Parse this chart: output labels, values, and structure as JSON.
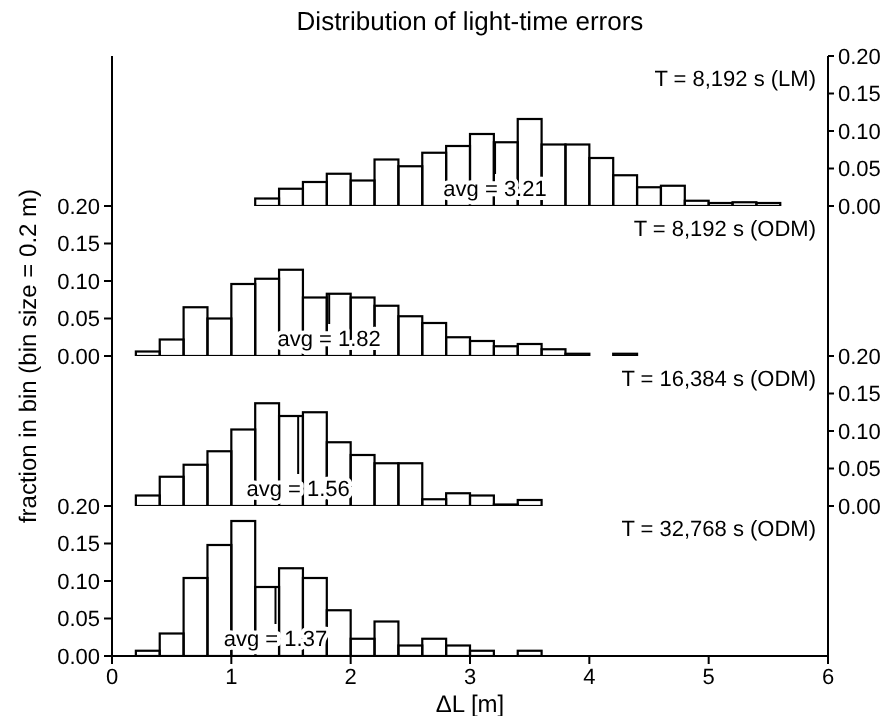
{
  "chart_data": [
    {
      "type": "histogram",
      "title": "Distribution of light-time errors",
      "annotations": [
        "T = 8,192 s (LM)",
        {
          "text": "avg = 3.21",
          "x": 3.21
        }
      ],
      "bins": [
        0,
        0.2,
        0.4,
        0.6,
        0.8,
        1,
        1.2,
        1.4,
        1.6,
        1.8,
        2,
        2.2,
        2.4,
        2.6,
        2.8,
        3,
        3.2,
        3.4,
        3.6,
        3.8,
        4,
        4.2,
        4.4,
        4.6,
        4.8,
        5,
        5.2,
        5.4,
        5.6,
        5.8,
        6
      ],
      "series": [
        {
          "color": "#000000",
          "axis": "y2",
          "values": [
            0,
            0,
            0,
            0,
            0,
            0,
            0.01,
            0.023,
            0.032,
            0.043,
            0.034,
            0.062,
            0.053,
            0.071,
            0.08,
            0.096,
            0.085,
            0.116,
            0.082,
            0.082,
            0.064,
            0.041,
            0.025,
            0.027,
            0.007,
            0.004,
            0.005,
            0.004,
            0,
            0
          ]
        }
      ],
      "xlim": [
        0,
        6
      ],
      "xticks": [
        0,
        1,
        2,
        3,
        4,
        5,
        6
      ],
      "y2lim": [
        0,
        0.2
      ],
      "y2ticks": [
        {
          "value": 0,
          "label": "0.00"
        },
        {
          "value": 0.05,
          "label": "0.05"
        },
        {
          "value": 0.1,
          "label": "0.10"
        },
        {
          "value": 0.15,
          "label": "0.15"
        },
        {
          "value": 0.2,
          "label": "0.20"
        }
      ],
      "tick_labels": "y"
    },
    {
      "type": "histogram",
      "ylabel": "fraction in bin (bin size = 0.2 m)",
      "annotations": [
        "T = 8,192 s (ODM)",
        {
          "text": "avg = 1.82",
          "x": 1.82
        }
      ],
      "bins": [
        0,
        0.2,
        0.4,
        0.6,
        0.8,
        1,
        1.2,
        1.4,
        1.6,
        1.8,
        2,
        2.2,
        2.4,
        2.6,
        2.8,
        3,
        3.2,
        3.4,
        3.6,
        3.8,
        4,
        4.2,
        4.4,
        4.6,
        4.8,
        5,
        5.2,
        5.4,
        5.6,
        5.8,
        6
      ],
      "series": [
        {
          "color": "#000000",
          "values": [
            0,
            0.006,
            0.022,
            0.065,
            0.05,
            0.096,
            0.103,
            0.115,
            0.078,
            0.083,
            0.078,
            0.067,
            0.053,
            0.044,
            0.025,
            0.02,
            0.013,
            0.016,
            0.009,
            0.003,
            0,
            0.003,
            0,
            0,
            0,
            0,
            0,
            0,
            0,
            0
          ]
        }
      ],
      "xlim": [
        0,
        6
      ],
      "xticks": [
        0,
        1,
        2,
        3,
        4,
        5,
        6
      ],
      "ylim": [
        0,
        0.2
      ],
      "yticks": [
        {
          "value": 0,
          "label": "0.00"
        },
        {
          "value": 0.05,
          "label": "0.05"
        },
        {
          "value": 0.1,
          "label": "0.10"
        },
        {
          "value": 0.15,
          "label": "0.15"
        },
        {
          "value": 0.2,
          "label": "0.20"
        }
      ],
      "tick_labels": "y"
    },
    {
      "type": "histogram",
      "annotations": [
        "T = 16,384 s (ODM)",
        {
          "text": "avg = 1.56",
          "x": 1.56
        }
      ],
      "bins": [
        0,
        0.2,
        0.4,
        0.6,
        0.8,
        1,
        1.2,
        1.4,
        1.6,
        1.8,
        2,
        2.2,
        2.4,
        2.6,
        2.8,
        3,
        3.2,
        3.4,
        3.6,
        3.8,
        4,
        4.2,
        4.4,
        4.6,
        4.8,
        5,
        5.2,
        5.4,
        5.6,
        5.8,
        6
      ],
      "series": [
        {
          "color": "#000000",
          "axis": "y2",
          "values": [
            0,
            0.014,
            0.039,
            0.055,
            0.073,
            0.102,
            0.137,
            0.12,
            0.125,
            0.085,
            0.068,
            0.057,
            0.057,
            0.009,
            0.017,
            0.014,
            0.002,
            0.008,
            0,
            0,
            0,
            0,
            0,
            0,
            0,
            0,
            0,
            0,
            0,
            0
          ]
        }
      ],
      "xlim": [
        0,
        6
      ],
      "xticks": [
        0,
        1,
        2,
        3,
        4,
        5,
        6
      ],
      "y2lim": [
        0,
        0.2
      ],
      "y2ticks": [
        {
          "value": 0,
          "label": "0.00"
        },
        {
          "value": 0.05,
          "label": "0.05"
        },
        {
          "value": 0.1,
          "label": "0.10"
        },
        {
          "value": 0.15,
          "label": "0.15"
        },
        {
          "value": 0.2,
          "label": "0.20"
        }
      ],
      "tick_labels": "y"
    },
    {
      "type": "histogram",
      "xlabel": "ΔL [m]",
      "annotations": [
        "T = 32,768 s (ODM)",
        {
          "text": "avg = 1.37",
          "x": 1.37
        }
      ],
      "bins": [
        0,
        0.2,
        0.4,
        0.6,
        0.8,
        1,
        1.2,
        1.4,
        1.6,
        1.8,
        2,
        2.2,
        2.4,
        2.6,
        2.8,
        3,
        3.2,
        3.4,
        3.6,
        3.8,
        4,
        4.2,
        4.4,
        4.6,
        4.8,
        5,
        5.2,
        5.4,
        5.6,
        5.8,
        6
      ],
      "series": [
        {
          "color": "#000000",
          "values": [
            0,
            0.007,
            0.03,
            0.104,
            0.148,
            0.18,
            0.092,
            0.117,
            0.104,
            0.061,
            0.023,
            0.046,
            0.014,
            0.023,
            0.014,
            0.007,
            0,
            0.007,
            0,
            0,
            0,
            0,
            0,
            0,
            0,
            0,
            0,
            0,
            0,
            0
          ]
        }
      ],
      "xlim": [
        0,
        6
      ],
      "xticks": [
        0,
        1,
        2,
        3,
        4,
        5,
        6
      ],
      "ylim": [
        0,
        0.2
      ],
      "yticks": [
        {
          "value": 0,
          "label": "0.00"
        },
        {
          "value": 0.05,
          "label": "0.05"
        },
        {
          "value": 0.1,
          "label": "0.10"
        },
        {
          "value": 0.15,
          "label": "0.15"
        },
        {
          "value": 0.2,
          "label": "0.20"
        }
      ]
    }
  ]
}
